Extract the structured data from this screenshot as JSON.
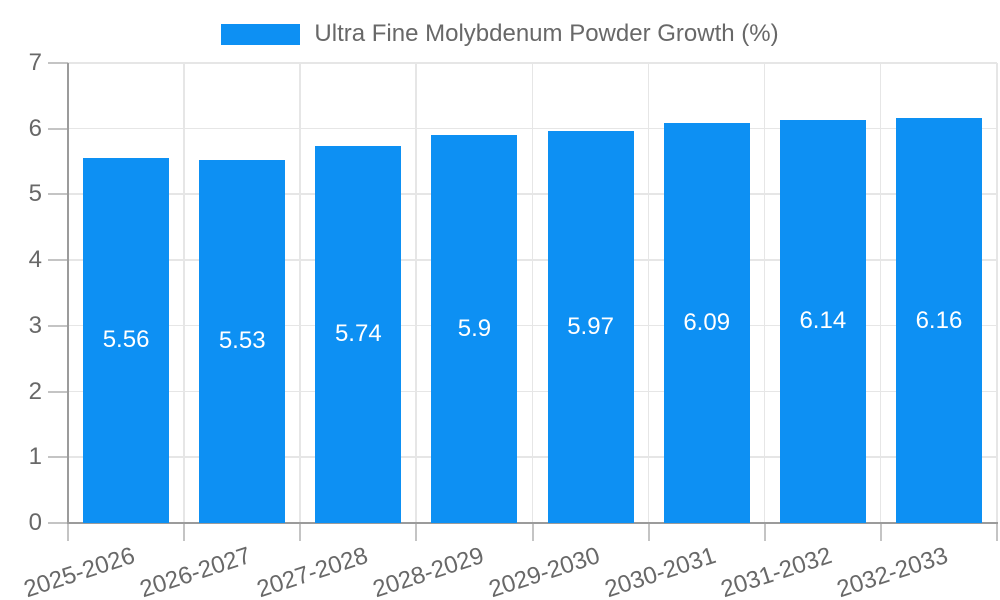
{
  "legend": {
    "label": "Ultra Fine Molybdenum Powder Growth (%)"
  },
  "chart_data": {
    "type": "bar",
    "title": "",
    "xlabel": "",
    "ylabel": "",
    "series_name": "Ultra Fine Molybdenum Powder Growth (%)",
    "categories": [
      "2025-2026",
      "2026-2027",
      "2027-2028",
      "2028-2029",
      "2029-2030",
      "2030-2031",
      "2031-2032",
      "2032-2033"
    ],
    "values": [
      5.56,
      5.53,
      5.74,
      5.9,
      5.97,
      6.09,
      6.14,
      6.16
    ],
    "ylim": [
      0,
      7
    ],
    "yticks": [
      0,
      1,
      2,
      3,
      4,
      5,
      6,
      7
    ],
    "grid": true,
    "legend_position": "top-center",
    "value_label_position": "inside-center",
    "x_tick_rotation_deg": -18,
    "colors": {
      "bar": "#0d90f3",
      "grid": "#e6e6e6",
      "axis": "#9b9b9b",
      "tick": "#c4c4c4",
      "text": "#686868",
      "value_label": "#ffffff",
      "background": "#ffffff"
    }
  }
}
